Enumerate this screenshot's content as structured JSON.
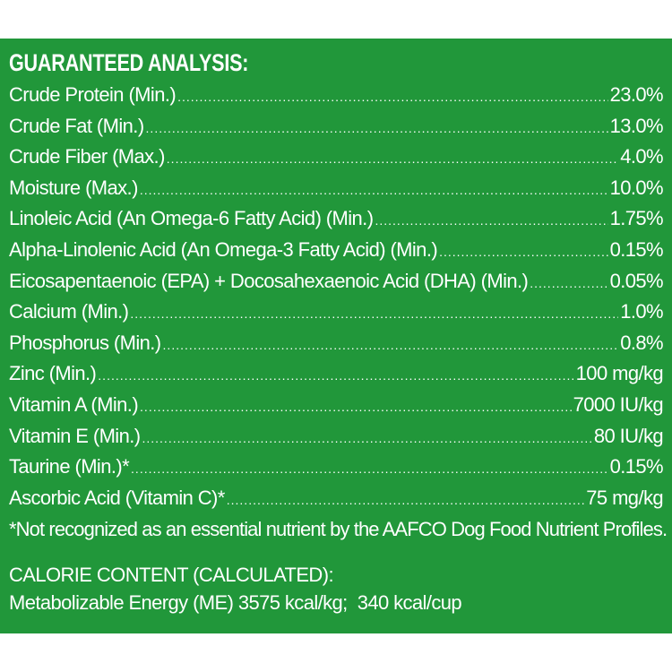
{
  "guaranteed_analysis": {
    "title": "GUARANTEED ANALYSIS:",
    "rows": [
      {
        "label": "Crude Protein (Min.)",
        "value": "23.0%"
      },
      {
        "label": "Crude Fat (Min.)",
        "value": "13.0%"
      },
      {
        "label": "Crude Fiber (Max.)",
        "value": "4.0%"
      },
      {
        "label": "Moisture (Max.)",
        "value": "10.0%"
      },
      {
        "label": "Linoleic Acid (An Omega-6 Fatty Acid) (Min.)",
        "value": "1.75%"
      },
      {
        "label": "Alpha-Linolenic Acid (An Omega-3 Fatty Acid) (Min.)",
        "value": "0.15%"
      },
      {
        "label": "Eicosapentaenoic (EPA) + Docosahexaenoic Acid (DHA) (Min.)",
        "value": "0.05%"
      },
      {
        "label": "Calcium (Min.)",
        "value": "1.0%"
      },
      {
        "label": "Phosphorus (Min.)",
        "value": "0.8%"
      },
      {
        "label": "Zinc (Min.)",
        "value": "100 mg/kg"
      },
      {
        "label": "Vitamin A (Min.)",
        "value": "7000 IU/kg"
      },
      {
        "label": "Vitamin E (Min.)",
        "value": "80 IU/kg"
      },
      {
        "label": "Taurine (Min.)*",
        "value": "0.15%"
      },
      {
        "label": "Ascorbic Acid (Vitamin C)*",
        "value": "75 mg/kg"
      }
    ],
    "footnote": "*Not recognized as an essential nutrient by the AAFCO Dog Food Nutrient Profiles."
  },
  "calorie_content": {
    "title": "CALORIE CONTENT (CALCULATED):",
    "value": "Metabolizable Energy (ME) 3575 kcal/kg;  340 kcal/cup"
  },
  "colors": {
    "panel_background": "#21973a",
    "page_background": "#ffffff",
    "text": "#ffffff"
  }
}
